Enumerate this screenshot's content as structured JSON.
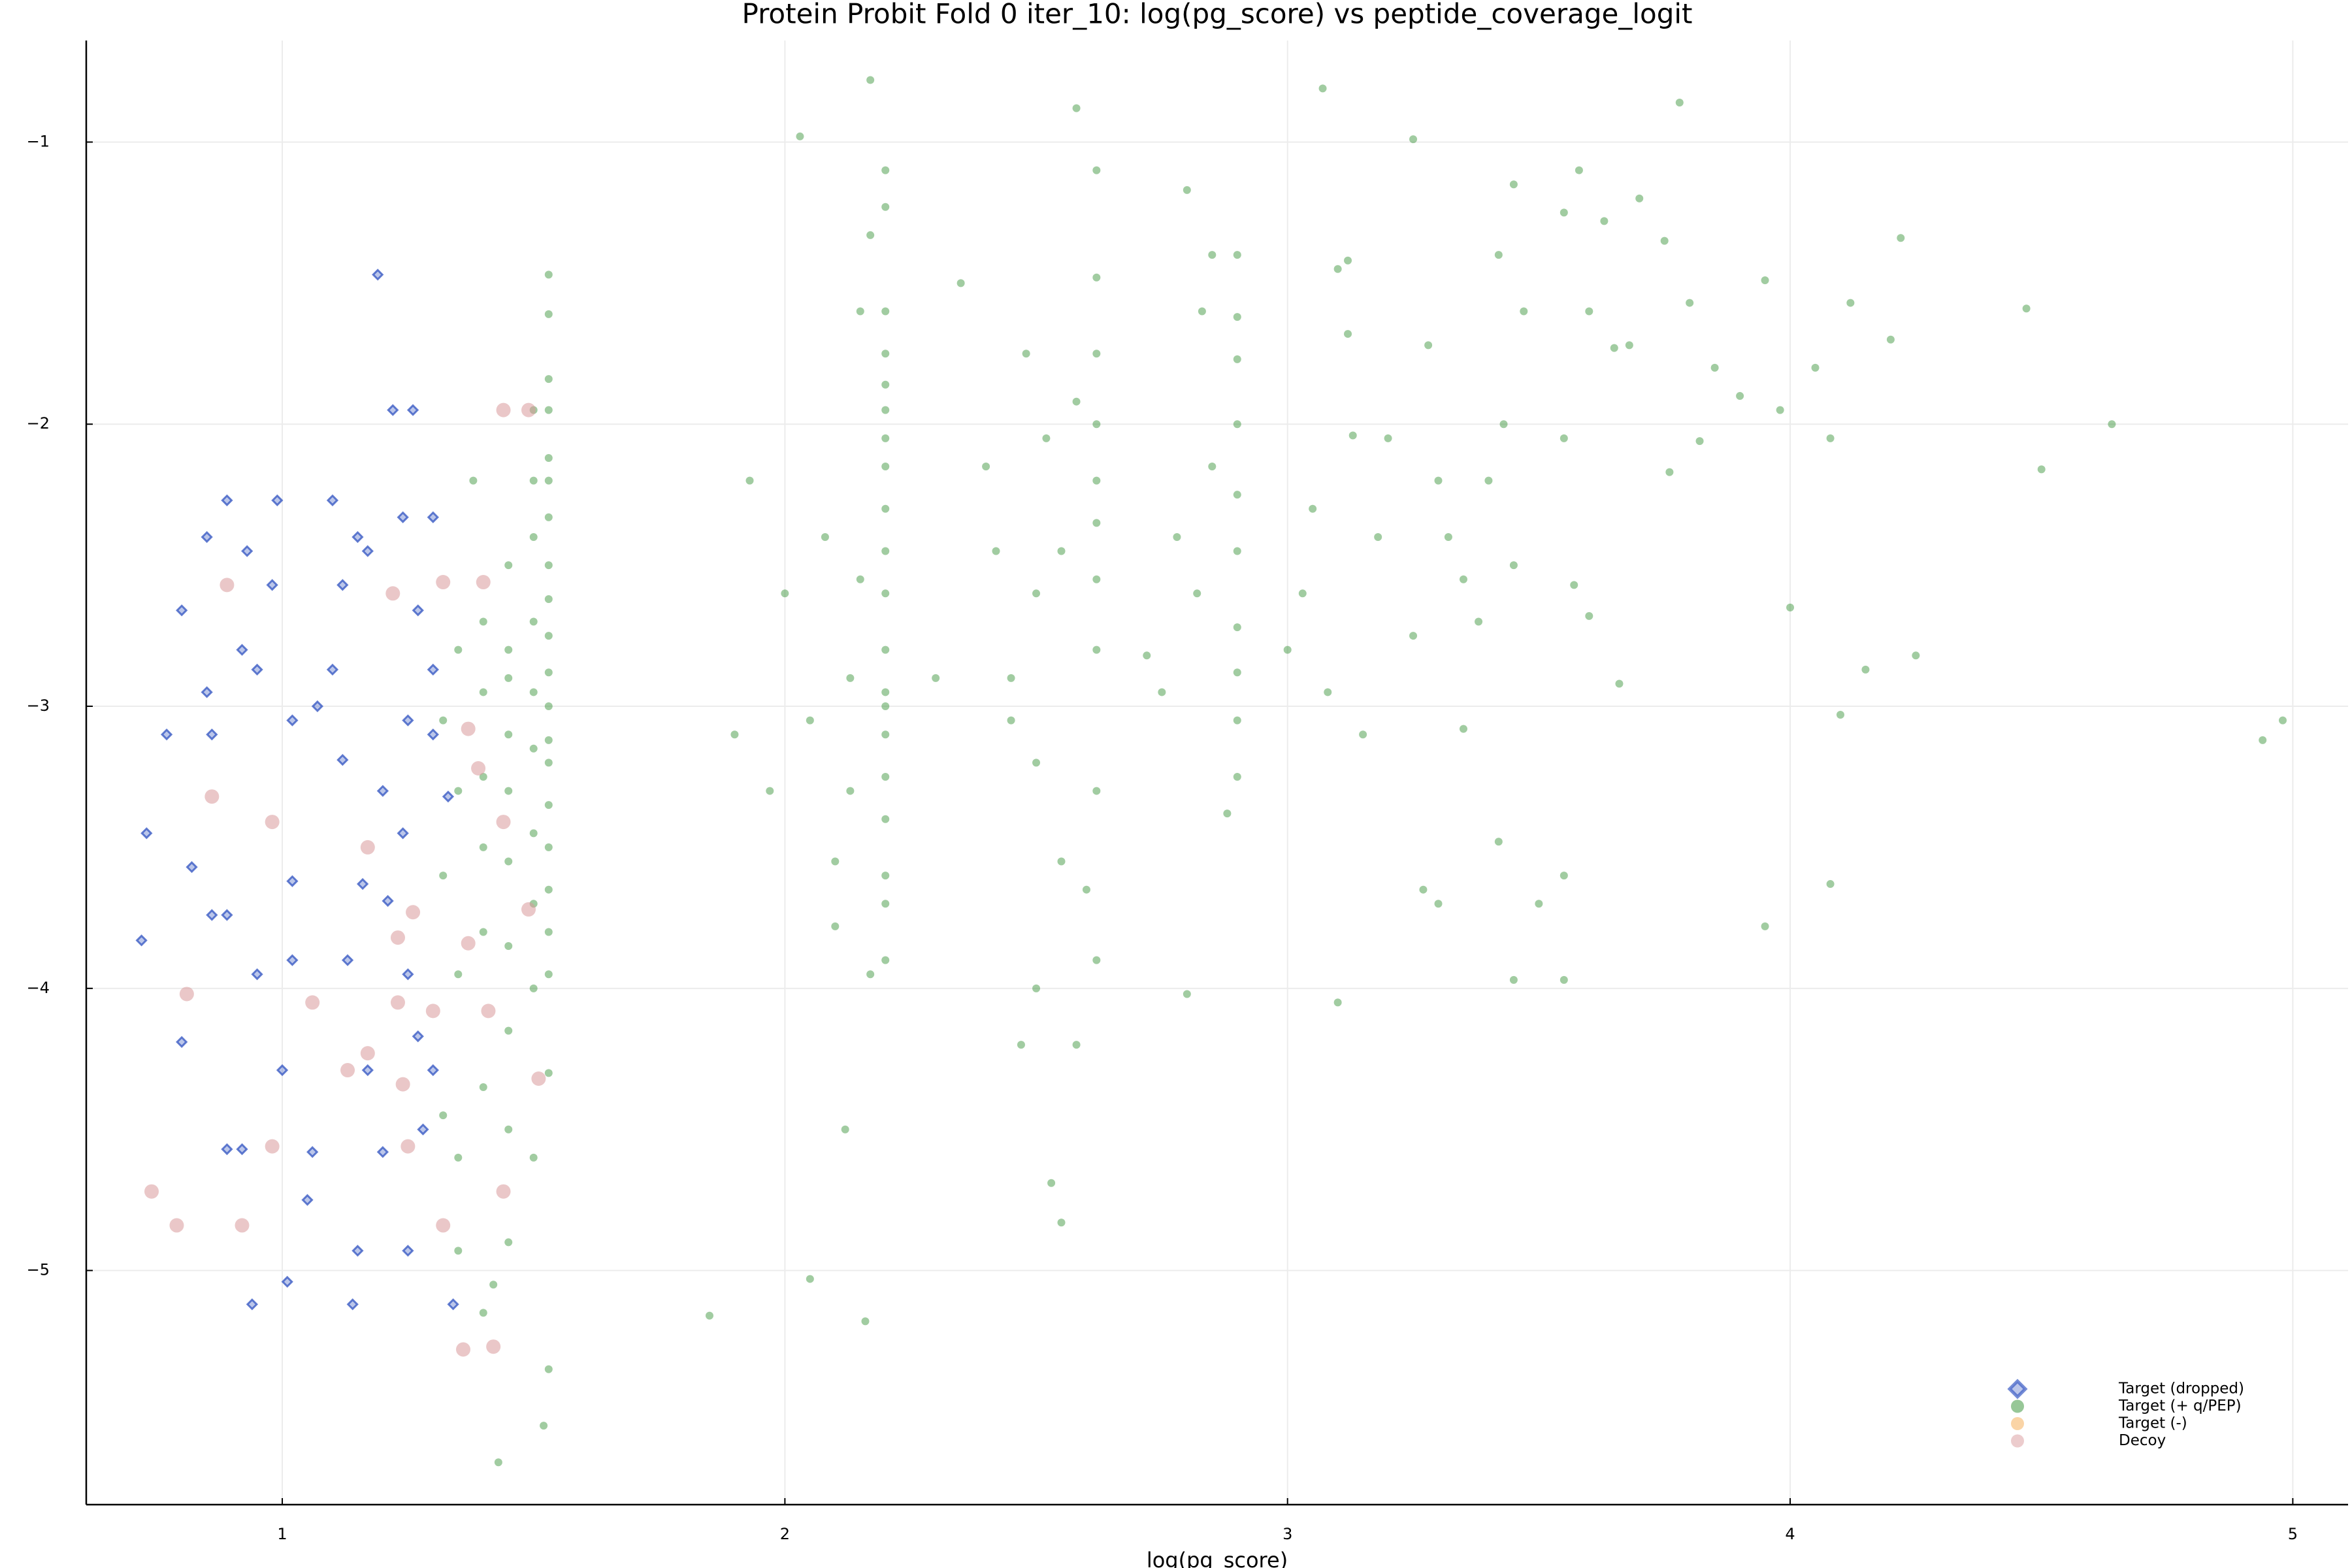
{
  "chart_data": {
    "type": "scatter",
    "title": "Protein Probit Fold 0 iter_10: log(pg_score) vs peptide_coverage_logit",
    "x_label": "log(pg_score)",
    "xlim": [
      0.61,
      5.11
    ],
    "ylim": [
      -5.83,
      -0.64
    ],
    "xticks": [
      1,
      2,
      3,
      4,
      5
    ],
    "yticks": [
      {
        "value": -1,
        "label": "−1"
      },
      {
        "value": -2,
        "label": "−2"
      },
      {
        "value": -3,
        "label": "−3"
      },
      {
        "value": -4,
        "label": "−4"
      },
      {
        "value": -5,
        "label": "−5"
      }
    ],
    "grid": true,
    "legend": "bottom-right",
    "series": [
      {
        "name": "Target (dropped)",
        "color": "#3b5bc4",
        "marker": "diamond",
        "x": [
          1.19,
          1.22,
          1.26,
          0.89,
          0.99,
          1.1,
          0.85,
          1.15,
          1.24,
          1.3,
          0.93,
          1.17,
          0.8,
          1.27,
          0.98,
          1.12,
          0.92,
          0.95,
          1.3,
          1.1,
          0.85,
          1.02,
          1.07,
          1.25,
          0.77,
          0.86,
          1.12,
          1.3,
          1.2,
          0.73,
          1.24,
          0.82,
          1.02,
          1.16,
          0.86,
          0.89,
          1.21,
          0.72,
          1.13,
          1.02,
          0.95,
          1.25,
          0.8,
          1.27,
          1.0,
          1.17,
          1.3,
          0.89,
          0.92,
          1.2,
          1.06,
          1.05,
          1.15,
          1.25,
          1.01,
          0.94,
          1.14,
          1.34,
          1.28,
          1.33
        ],
        "values": [
          -1.47,
          -1.95,
          -1.95,
          -2.27,
          -2.27,
          -2.27,
          -2.4,
          -2.4,
          -2.33,
          -2.33,
          -2.45,
          -2.45,
          -2.66,
          -2.66,
          -2.57,
          -2.57,
          -2.8,
          -2.87,
          -2.87,
          -2.87,
          -2.95,
          -3.05,
          -3.0,
          -3.05,
          -3.1,
          -3.1,
          -3.19,
          -3.1,
          -3.3,
          -3.45,
          -3.45,
          -3.57,
          -3.62,
          -3.63,
          -3.74,
          -3.74,
          -3.69,
          -3.83,
          -3.9,
          -3.9,
          -3.95,
          -3.95,
          -4.19,
          -4.17,
          -4.29,
          -4.29,
          -4.29,
          -4.57,
          -4.57,
          -4.58,
          -4.58,
          -4.75,
          -4.93,
          -4.93,
          -5.04,
          -5.12,
          -5.12,
          -5.12,
          -4.5,
          -3.32
        ]
      },
      {
        "name": "Target (+ q/PEP)",
        "color": "#2f8f2f",
        "marker": "circle",
        "x": [
          1.53,
          1.53,
          1.53,
          1.53,
          1.53,
          1.53,
          1.53,
          1.53,
          1.53,
          1.53,
          1.53,
          1.53,
          1.53,
          1.53,
          1.53,
          1.53,
          1.53,
          1.53,
          1.53,
          1.53,
          1.5,
          1.5,
          1.5,
          1.5,
          1.5,
          1.5,
          1.5,
          1.5,
          1.5,
          1.5,
          1.45,
          1.45,
          1.45,
          1.45,
          1.45,
          1.45,
          1.45,
          1.45,
          1.45,
          1.45,
          1.4,
          1.4,
          1.4,
          1.4,
          1.4,
          1.4,
          1.4,
          1.35,
          1.35,
          1.35,
          1.35,
          1.35,
          1.32,
          1.32,
          1.32,
          1.38,
          1.43,
          1.52,
          1.53,
          1.42,
          2.2,
          2.2,
          2.2,
          2.2,
          2.2,
          2.2,
          2.2,
          2.2,
          2.2,
          2.2,
          2.2,
          2.2,
          2.2,
          2.2,
          2.2,
          2.2,
          2.2,
          2.2,
          2.2,
          2.2,
          2.17,
          2.17,
          2.15,
          2.15,
          2.13,
          2.13,
          2.1,
          2.1,
          2.08,
          2.05,
          2.03,
          2.0,
          1.97,
          1.93,
          1.9,
          2.12,
          2.16,
          2.05,
          1.85,
          2.17,
          2.62,
          2.62,
          2.62,
          2.62,
          2.62,
          2.62,
          2.62,
          2.62,
          2.62,
          2.62,
          2.58,
          2.58,
          2.55,
          2.55,
          2.52,
          2.5,
          2.5,
          2.48,
          2.45,
          2.42,
          2.58,
          2.5,
          2.55,
          2.4,
          2.35,
          2.3,
          2.47,
          2.53,
          2.6,
          2.45,
          2.9,
          2.9,
          2.9,
          2.9,
          2.9,
          2.9,
          2.9,
          2.9,
          2.9,
          2.9,
          2.85,
          2.85,
          2.82,
          2.8,
          2.78,
          2.75,
          2.88,
          2.83,
          2.72,
          2.8,
          3.07,
          3.1,
          3.12,
          3.13,
          3.05,
          3.03,
          3.0,
          3.15,
          3.1,
          3.08,
          3.25,
          3.28,
          3.3,
          3.32,
          3.35,
          3.25,
          3.2,
          3.18,
          3.3,
          3.27,
          3.42,
          3.45,
          3.47,
          3.43,
          3.4,
          3.45,
          3.42,
          3.5,
          3.55,
          3.38,
          3.55,
          3.58,
          3.6,
          3.63,
          3.7,
          3.68,
          3.75,
          3.78,
          3.8,
          3.85,
          3.9,
          3.95,
          3.98,
          4.05,
          4.08,
          4.12,
          4.2,
          4.22,
          4.47,
          4.5,
          3.57,
          3.6,
          3.66,
          3.76,
          3.82,
          3.95,
          4.08,
          4.1,
          4.64,
          4.98,
          4.94,
          4.15,
          4.25,
          3.65,
          3.55,
          3.45,
          3.35,
          3.12,
          3.55,
          4.0
        ],
        "values": [
          -1.47,
          -1.61,
          -1.84,
          -1.95,
          -2.12,
          -2.2,
          -2.33,
          -2.5,
          -2.62,
          -2.75,
          -2.88,
          -3.0,
          -3.12,
          -3.2,
          -3.35,
          -3.5,
          -3.65,
          -3.8,
          -3.95,
          -4.3,
          -1.95,
          -2.2,
          -2.4,
          -2.7,
          -2.95,
          -3.15,
          -3.45,
          -3.7,
          -4.0,
          -4.6,
          -2.5,
          -2.8,
          -2.9,
          -3.1,
          -3.3,
          -3.55,
          -3.85,
          -4.15,
          -4.5,
          -4.9,
          -2.7,
          -2.95,
          -3.25,
          -3.5,
          -3.8,
          -4.35,
          -5.15,
          -2.8,
          -3.3,
          -3.95,
          -4.6,
          -4.93,
          -3.05,
          -3.6,
          -4.45,
          -2.2,
          -5.68,
          -5.55,
          -5.35,
          -5.05,
          -1.1,
          -1.23,
          -1.6,
          -1.75,
          -2.15,
          -2.3,
          -2.45,
          -2.6,
          -2.8,
          -2.95,
          -3.1,
          -3.25,
          -3.4,
          -3.6,
          -3.9,
          -2.05,
          -1.95,
          -1.86,
          -3.7,
          -3.0,
          -0.78,
          -1.33,
          -1.6,
          -2.55,
          -2.9,
          -3.3,
          -3.55,
          -3.78,
          -2.4,
          -3.05,
          -0.98,
          -2.6,
          -3.3,
          -2.2,
          -3.1,
          -4.5,
          -5.18,
          -5.03,
          -5.16,
          -3.95,
          -1.1,
          -1.48,
          -1.75,
          -2.0,
          -2.2,
          -2.35,
          -2.55,
          -2.8,
          -3.3,
          -3.9,
          -0.88,
          -4.2,
          -2.45,
          -3.55,
          -2.05,
          -2.6,
          -3.2,
          -1.75,
          -2.9,
          -2.45,
          -1.92,
          -4.0,
          -4.83,
          -2.15,
          -1.5,
          -2.9,
          -4.2,
          -4.69,
          -3.65,
          -3.05,
          -1.4,
          -1.62,
          -1.77,
          -2.0,
          -2.25,
          -2.45,
          -2.72,
          -2.88,
          -3.05,
          -3.25,
          -1.4,
          -2.15,
          -2.6,
          -1.17,
          -2.4,
          -2.95,
          -3.38,
          -1.6,
          -2.82,
          -4.02,
          -0.81,
          -1.45,
          -1.68,
          -2.04,
          -2.3,
          -2.6,
          -2.8,
          -3.1,
          -4.05,
          -2.95,
          -0.99,
          -1.72,
          -2.2,
          -2.4,
          -2.55,
          -2.75,
          -2.05,
          -2.4,
          -3.7,
          -3.65,
          -1.4,
          -1.15,
          -1.6,
          -2.0,
          -2.2,
          -2.5,
          -3.48,
          -3.7,
          -3.6,
          -2.7,
          -1.25,
          -1.1,
          -1.6,
          -1.28,
          -1.2,
          -1.72,
          -1.35,
          -0.86,
          -1.57,
          -1.8,
          -1.9,
          -1.49,
          -1.95,
          -1.8,
          -2.05,
          -1.57,
          -1.7,
          -1.34,
          -1.59,
          -2.16,
          -2.57,
          -2.68,
          -2.92,
          -2.17,
          -2.06,
          -3.78,
          -3.63,
          -3.03,
          -2.0,
          -3.05,
          -3.12,
          -2.87,
          -2.82,
          -1.73,
          -3.97,
          -3.97,
          -3.08,
          -1.42,
          -2.05,
          -2.65
        ]
      },
      {
        "name": "Target (-)",
        "color": "#f5a94e",
        "marker": "circle",
        "x": [],
        "values": []
      },
      {
        "name": "Decoy",
        "color": "#d9999b",
        "marker": "circle",
        "x": [
          0.89,
          1.22,
          1.32,
          1.4,
          1.44,
          1.49,
          0.86,
          0.98,
          1.37,
          1.17,
          1.44,
          1.23,
          1.37,
          0.81,
          1.06,
          1.23,
          1.3,
          1.41,
          1.13,
          1.17,
          1.24,
          1.51,
          0.74,
          0.79,
          0.92,
          0.98,
          1.25,
          1.32,
          1.44,
          1.36,
          1.42,
          1.26,
          1.49,
          1.39
        ],
        "values": [
          -2.57,
          -2.6,
          -2.56,
          -2.56,
          -1.95,
          -1.95,
          -3.32,
          -3.41,
          -3.08,
          -3.5,
          -3.41,
          -3.82,
          -3.84,
          -4.02,
          -4.05,
          -4.05,
          -4.08,
          -4.08,
          -4.29,
          -4.23,
          -4.34,
          -4.32,
          -4.72,
          -4.84,
          -4.84,
          -4.56,
          -4.56,
          -4.84,
          -4.72,
          -5.28,
          -5.27,
          -3.73,
          -3.72,
          -3.22
        ]
      }
    ]
  }
}
